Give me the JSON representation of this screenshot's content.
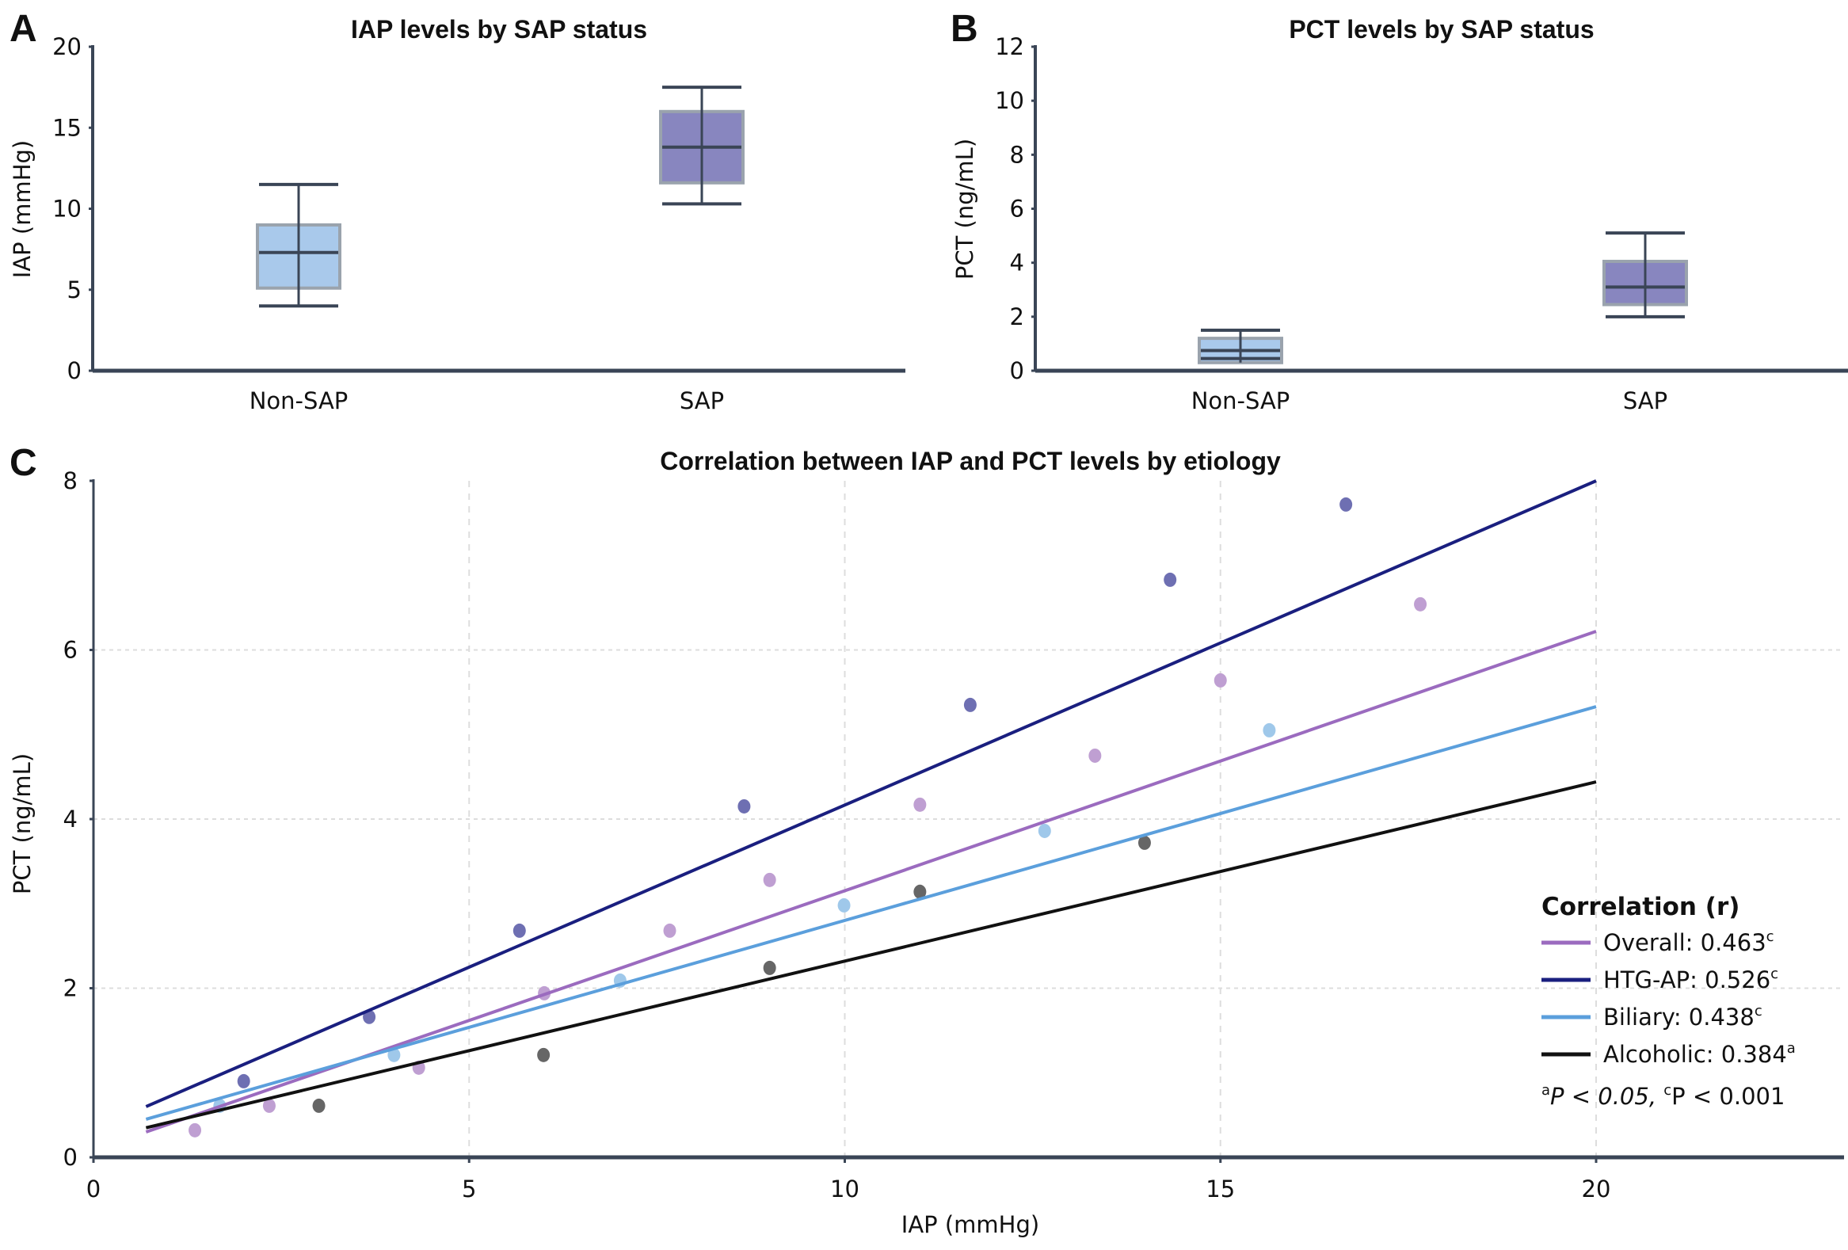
{
  "figure": {
    "panels": [
      "A",
      "B",
      "C"
    ]
  },
  "chart_data": [
    {
      "id": "A",
      "type": "box",
      "title": "IAP levels by SAP status",
      "xlabel": "",
      "ylabel": "IAP (mmHg)",
      "ylim": [
        0,
        20
      ],
      "yticks": [
        0,
        5,
        10,
        15,
        20
      ],
      "categories": [
        "Non-SAP",
        "SAP"
      ],
      "boxes": [
        {
          "name": "Non-SAP",
          "whisker_low": 4.0,
          "q1": 5.1,
          "median": 7.3,
          "q3": 9.0,
          "whisker_high": 11.5,
          "color": "#a9c9eb"
        },
        {
          "name": "SAP",
          "whisker_low": 10.3,
          "q1": 11.6,
          "median": 13.8,
          "q3": 16.0,
          "whisker_high": 17.5,
          "color": "#8886bf"
        }
      ],
      "grid": false
    },
    {
      "id": "B",
      "type": "box",
      "title": "PCT levels by SAP status",
      "xlabel": "",
      "ylabel": "PCT (ng/mL)",
      "ylim": [
        0,
        12
      ],
      "yticks": [
        0,
        2,
        4,
        6,
        8,
        10,
        12
      ],
      "categories": [
        "Non-SAP",
        "SAP"
      ],
      "boxes": [
        {
          "name": "Non-SAP",
          "whisker_low": 0.45,
          "q1": 0.3,
          "median": 0.75,
          "q3": 1.2,
          "whisker_high": 1.5,
          "color": "#a9c9eb"
        },
        {
          "name": "SAP",
          "whisker_low": 2.0,
          "q1": 2.45,
          "median": 3.1,
          "q3": 4.05,
          "whisker_high": 5.1,
          "color": "#8886bf"
        }
      ],
      "grid": false
    },
    {
      "id": "C",
      "type": "scatter",
      "title": "Correlation between IAP and PCT levels by etiology",
      "xlabel": "IAP (mmHg)",
      "ylabel": "PCT (ng/mL)",
      "xlim": [
        0,
        23.3
      ],
      "ylim": [
        0,
        8
      ],
      "xticks": [
        0,
        5,
        10,
        15,
        20
      ],
      "yticks": [
        0,
        2,
        4,
        6,
        8
      ],
      "grid": true,
      "legend": {
        "title": "Correlation (r)",
        "placement": "bottom-right",
        "footnote": {
          "a_label": "a",
          "a_text": "P < 0.05, ",
          "c_label": "c",
          "c_text": "P < 0.001"
        }
      },
      "series": [
        {
          "name": "Overall",
          "r": "0.463",
          "sig": "c",
          "line_color": "#9b6bbf",
          "point_color": "#bf9fd2",
          "fit": {
            "x": [
              0.7,
              20
            ],
            "y": [
              0.3,
              6.22
            ]
          },
          "points": [
            [
              1.35,
              0.32
            ],
            [
              2.34,
              0.61
            ],
            [
              4.33,
              1.06
            ],
            [
              6.0,
              1.94
            ],
            [
              7.67,
              2.68
            ],
            [
              9.0,
              3.28
            ],
            [
              11.0,
              4.17
            ],
            [
              13.33,
              4.75
            ],
            [
              15.0,
              5.64
            ],
            [
              17.66,
              6.54
            ]
          ]
        },
        {
          "name": "HTG-AP",
          "r": "0.526",
          "sig": "c",
          "line_color": "#1a1f7f",
          "point_color": "#6e6fb2",
          "fit": {
            "x": [
              0.7,
              20
            ],
            "y": [
              0.6,
              8.0
            ]
          },
          "points": [
            [
              2.0,
              0.9
            ],
            [
              3.67,
              1.66
            ],
            [
              5.67,
              2.68
            ],
            [
              8.66,
              4.15
            ],
            [
              11.67,
              5.35
            ],
            [
              14.33,
              6.83
            ],
            [
              16.67,
              7.72
            ]
          ]
        },
        {
          "name": "Biliary",
          "r": "0.438",
          "sig": "c",
          "line_color": "#5b9fdc",
          "point_color": "#9fc8ea",
          "fit": {
            "x": [
              0.7,
              20
            ],
            "y": [
              0.45,
              5.33
            ]
          },
          "points": [
            [
              1.68,
              0.61
            ],
            [
              4.0,
              1.21
            ],
            [
              7.01,
              2.09
            ],
            [
              9.99,
              2.98
            ],
            [
              12.66,
              3.86
            ],
            [
              15.65,
              5.05
            ]
          ]
        },
        {
          "name": "Alcoholic",
          "r": "0.384",
          "sig": "a",
          "line_color": "#111111",
          "point_color": "#666666",
          "fit": {
            "x": [
              0.7,
              20
            ],
            "y": [
              0.35,
              4.44
            ]
          },
          "points": [
            [
              3.0,
              0.61
            ],
            [
              5.99,
              1.21
            ],
            [
              9.0,
              2.24
            ],
            [
              11.0,
              3.14
            ],
            [
              13.99,
              3.72
            ]
          ]
        }
      ]
    }
  ],
  "colors": {
    "axis": "#3a4556",
    "box_border": "#9aa3ad",
    "grid": "#dddddd"
  }
}
